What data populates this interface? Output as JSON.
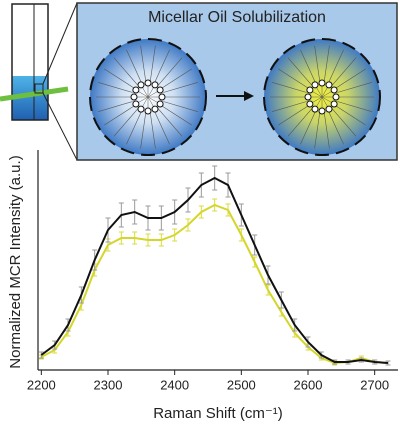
{
  "chart_data": {
    "type": "line",
    "annotations": [
      "Micellar Oil Solubilization"
    ],
    "x_label": "Raman Shift (cm⁻¹)",
    "y_label": "Normalized MCR Intensity (a.u.)",
    "x": [
      2200,
      2220,
      2240,
      2260,
      2280,
      2300,
      2320,
      2340,
      2360,
      2380,
      2400,
      2420,
      2440,
      2460,
      2480,
      2500,
      2520,
      2540,
      2560,
      2580,
      2600,
      2620,
      2640,
      2660,
      2680,
      2700,
      2720
    ],
    "series": [
      {
        "color": "#d4d62a",
        "error_color": "#d9db3c",
        "values": [
          0.025,
          0.06,
          0.15,
          0.285,
          0.46,
          0.585,
          0.62,
          0.62,
          0.61,
          0.61,
          0.635,
          0.685,
          0.75,
          0.785,
          0.76,
          0.635,
          0.5,
          0.36,
          0.25,
          0.145,
          0.075,
          0.02,
          -0.005,
          0,
          0.02,
          0,
          -0.005
        ],
        "errors": [
          0.01,
          0.015,
          0.02,
          0.025,
          0.03,
          0.03,
          0.03,
          0.03,
          0.03,
          0.03,
          0.03,
          0.03,
          0.03,
          0.03,
          0.03,
          0.03,
          0.025,
          0.025,
          0.02,
          0.02,
          0.015,
          0.01,
          0.01,
          0.01,
          0.01,
          0.01,
          0.01
        ]
      },
      {
        "color": "#111111",
        "error_color": "#9a9a9a",
        "values": [
          0.035,
          0.085,
          0.185,
          0.335,
          0.51,
          0.66,
          0.735,
          0.75,
          0.72,
          0.72,
          0.75,
          0.81,
          0.885,
          0.92,
          0.885,
          0.735,
          0.585,
          0.435,
          0.31,
          0.185,
          0.1,
          0.035,
          0,
          0,
          0.01,
          0,
          -0.005
        ],
        "errors": [
          0.015,
          0.02,
          0.03,
          0.04,
          0.05,
          0.06,
          0.06,
          0.06,
          0.06,
          0.06,
          0.06,
          0.06,
          0.06,
          0.06,
          0.06,
          0.055,
          0.05,
          0.045,
          0.04,
          0.03,
          0.025,
          0.015,
          0.01,
          0.01,
          0.01,
          0.01,
          0.01
        ]
      }
    ],
    "xlim": [
      2195,
      2735
    ],
    "xticks": [
      2200,
      2300,
      2400,
      2500,
      2600,
      2700
    ],
    "ylim": [
      -0.04,
      1.06
    ]
  }
}
